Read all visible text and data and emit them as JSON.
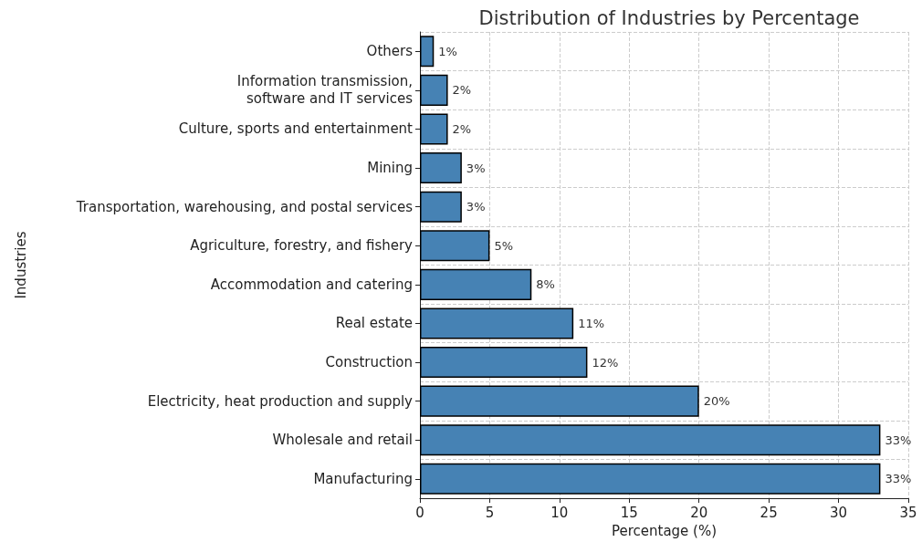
{
  "chart_data": {
    "type": "bar",
    "orientation": "horizontal",
    "title": "Distribution of Industries by Percentage",
    "xlabel": "Percentage (%)",
    "ylabel": "Industries",
    "categories": [
      "Others",
      "Information transmission,\nsoftware and IT services",
      "Culture, sports and entertainment",
      "Mining",
      "Transportation, warehousing, and postal services",
      "Agriculture, forestry, and fishery",
      "Accommodation and catering",
      "Real estate",
      "Construction",
      "Electricity, heat production and supply",
      "Wholesale and retail",
      "Manufacturing"
    ],
    "values": [
      1,
      2,
      2,
      3,
      3,
      5,
      8,
      11,
      12,
      20,
      33,
      33
    ],
    "value_labels": [
      "1%",
      "2%",
      "2%",
      "3%",
      "3%",
      "5%",
      "8%",
      "11%",
      "12%",
      "20%",
      "33%",
      "33%"
    ],
    "color": "#4682b4",
    "xlim": [
      0,
      35
    ],
    "xticks": [
      0,
      5,
      10,
      15,
      20,
      25,
      30,
      35
    ],
    "grid": true
  }
}
